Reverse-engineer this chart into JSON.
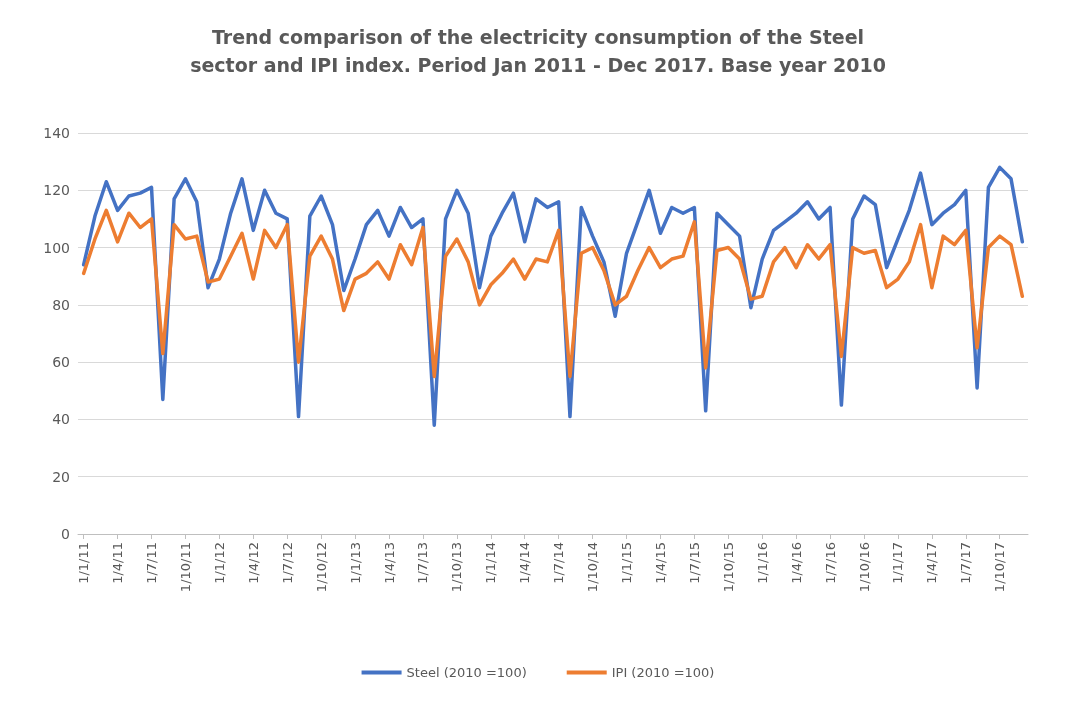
{
  "chart_data": {
    "type": "line",
    "title": "Trend comparison of the electricity consumption of the Steel\nsector and IPI index. Period Jan 2011 - Dec 2017. Base year 2010",
    "categories": [
      "1/1/11",
      null,
      null,
      "1/4/11",
      null,
      null,
      "1/7/11",
      null,
      null,
      "1/10/11",
      null,
      null,
      "1/1/12",
      null,
      null,
      "1/4/12",
      null,
      null,
      "1/7/12",
      null,
      null,
      "1/10/12",
      null,
      null,
      "1/1/13",
      null,
      null,
      "1/4/13",
      null,
      null,
      "1/7/13",
      null,
      null,
      "1/10/13",
      null,
      null,
      "1/1/14",
      null,
      null,
      "1/4/14",
      null,
      null,
      "1/7/14",
      null,
      null,
      "1/10/14",
      null,
      null,
      "1/1/15",
      null,
      null,
      "1/4/15",
      null,
      null,
      "1/7/15",
      null,
      null,
      "1/10/15",
      null,
      null,
      "1/1/16",
      null,
      null,
      "1/4/16",
      null,
      null,
      "1/7/16",
      null,
      null,
      "1/10/16",
      null,
      null,
      "1/1/17",
      null,
      null,
      "1/4/17",
      null,
      null,
      "1/7/17",
      null,
      null,
      "1/10/17",
      null,
      null
    ],
    "series": [
      {
        "name": "Steel (2010 =100)",
        "color": "#4472c4",
        "values": [
          94,
          111,
          123,
          113,
          118,
          119,
          121,
          47,
          117,
          124,
          116,
          86,
          96,
          112,
          124,
          106,
          120,
          112,
          110,
          41,
          111,
          118,
          108,
          85,
          96,
          108,
          113,
          104,
          114,
          107,
          110,
          38,
          110,
          120,
          112,
          86,
          104,
          112,
          119,
          102,
          117,
          114,
          116,
          41,
          114,
          104,
          95,
          76,
          98,
          109,
          120,
          105,
          114,
          112,
          114,
          43,
          112,
          108,
          104,
          79,
          96,
          106,
          109,
          112,
          116,
          110,
          114,
          45,
          110,
          118,
          115,
          93,
          103,
          113,
          126,
          108,
          112,
          115,
          120,
          51,
          121,
          128,
          124,
          102
        ]
      },
      {
        "name": "IPI (2010 =100)",
        "color": "#ed7d31",
        "values": [
          91,
          103,
          113,
          102,
          112,
          107,
          110,
          63,
          108,
          103,
          104,
          88,
          89,
          97,
          105,
          89,
          106,
          100,
          108,
          60,
          97,
          104,
          96,
          78,
          89,
          91,
          95,
          89,
          101,
          94,
          107,
          55,
          97,
          103,
          95,
          80,
          87,
          91,
          96,
          89,
          96,
          95,
          106,
          55,
          98,
          100,
          92,
          80,
          83,
          92,
          100,
          93,
          96,
          97,
          109,
          58,
          99,
          100,
          96,
          82,
          83,
          95,
          100,
          93,
          101,
          96,
          101,
          62,
          100,
          98,
          99,
          86,
          89,
          95,
          108,
          86,
          104,
          101,
          106,
          65,
          100,
          104,
          101,
          83
        ]
      }
    ],
    "ylim": [
      0,
      140
    ],
    "yticks": [
      0,
      20,
      40,
      60,
      80,
      100,
      120,
      140
    ],
    "grid": "y",
    "legend": "bottom",
    "marker": "none",
    "line_style": "solid"
  }
}
